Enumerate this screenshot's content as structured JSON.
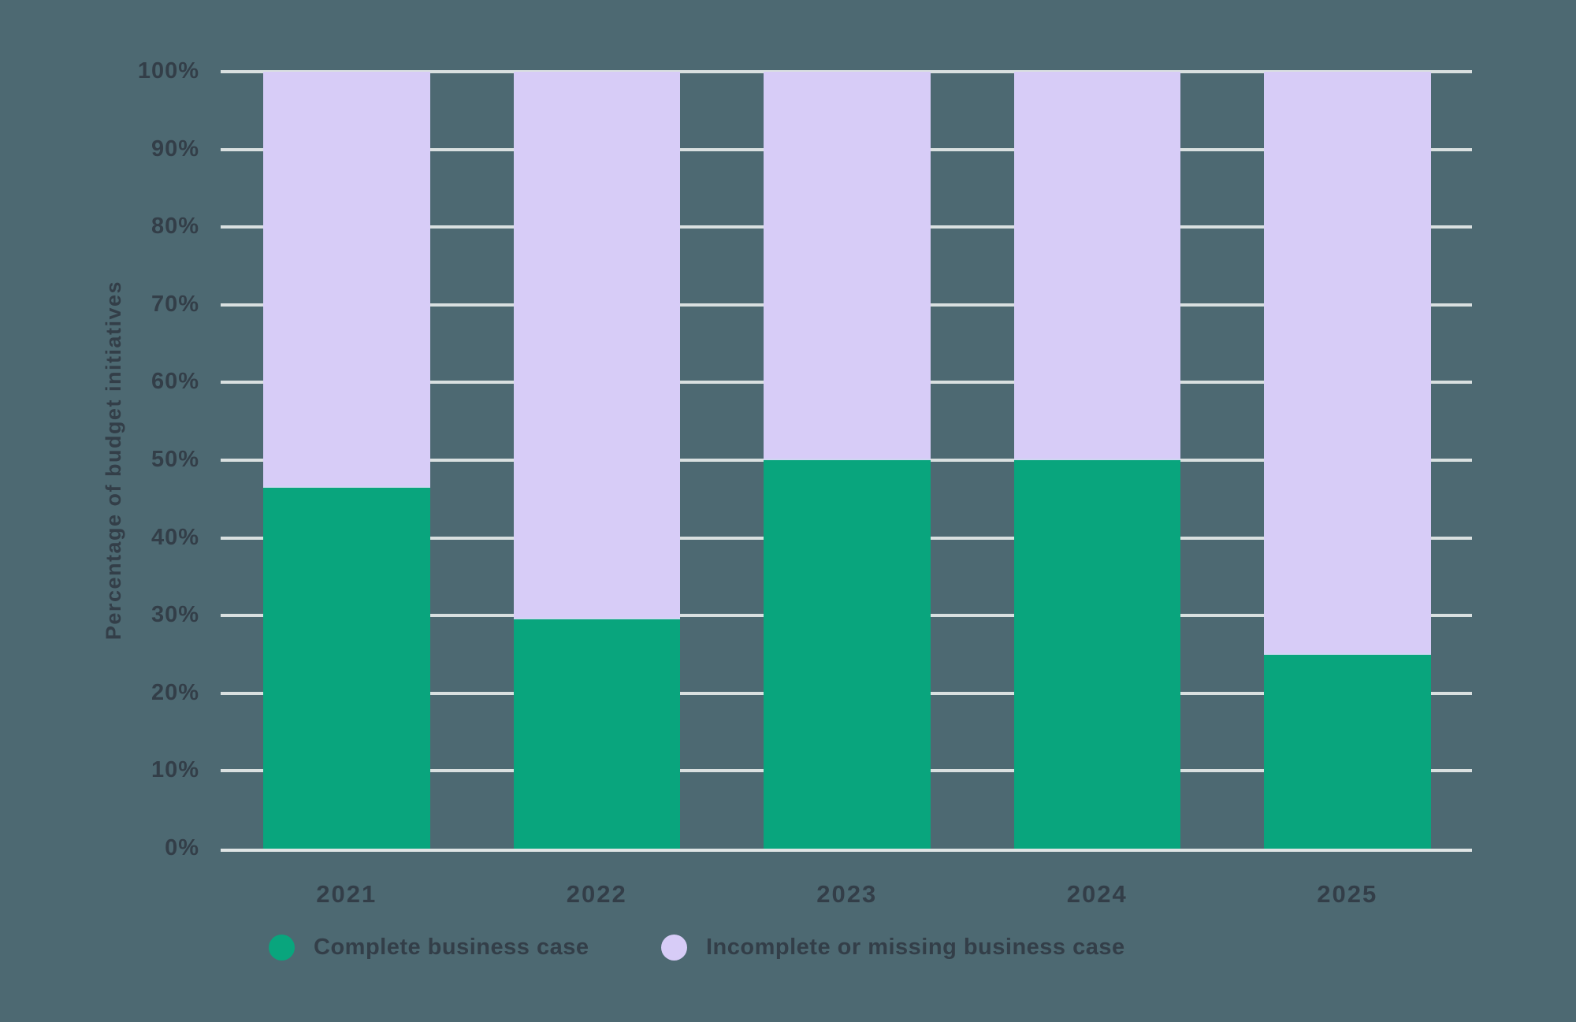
{
  "colors": {
    "background": "#4D6972",
    "grid": "#D9E0E0",
    "axis_line": "#DFE5E5",
    "text": "#333E48",
    "complete": "#09A57D",
    "incomplete": "#D7CCF7"
  },
  "chart_data": {
    "type": "bar",
    "variant": "stacked-100-percent",
    "title": "",
    "categories": [
      "2021",
      "2022",
      "2023",
      "2024",
      "2025"
    ],
    "series": [
      {
        "name": "Complete business case",
        "color": "#09A57D",
        "values": [
          46.5,
          29.5,
          50,
          50,
          25
        ]
      },
      {
        "name": "Incomplete or missing business case",
        "color": "#D7CCF7",
        "values": [
          53.5,
          70.5,
          50,
          50,
          75
        ]
      }
    ],
    "xlabel": "",
    "ylabel": "Percentage of budget initiatives",
    "ylim": [
      0,
      100
    ],
    "ytick_step": 10,
    "yticks": [
      "0%",
      "10%",
      "20%",
      "30%",
      "40%",
      "50%",
      "60%",
      "70%",
      "80%",
      "90%",
      "100%"
    ],
    "grid": true,
    "legend_position": "bottom"
  }
}
